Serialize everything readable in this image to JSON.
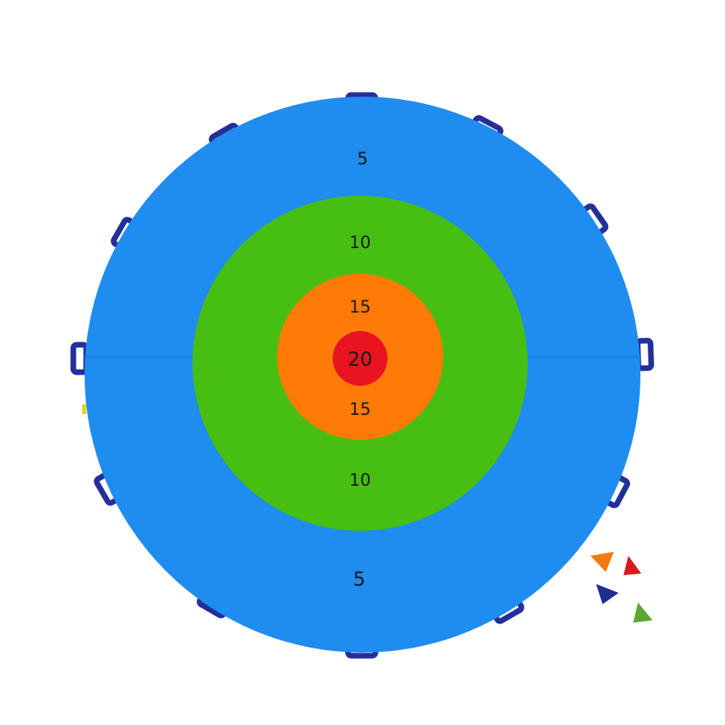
{
  "target": {
    "labels": [
      "5",
      "10",
      "15",
      "20",
      "15",
      "10",
      "5"
    ]
  }
}
